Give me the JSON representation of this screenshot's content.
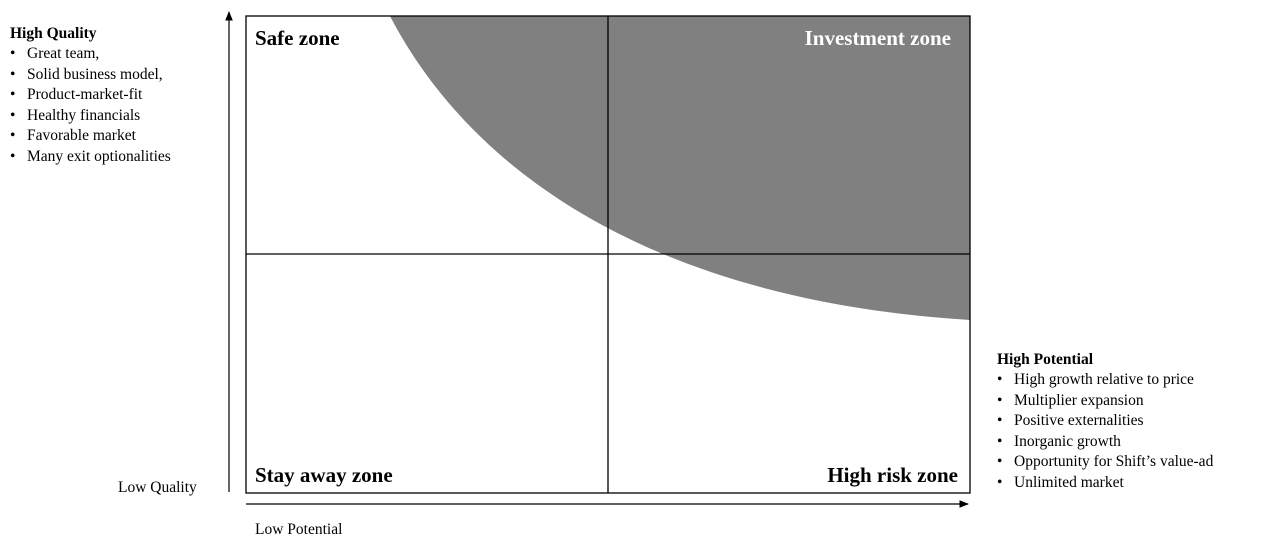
{
  "quality": {
    "title": "High Quality",
    "items": [
      "Great team,",
      "Solid business model,",
      "Product-market-fit",
      "Healthy financials",
      "Favorable market",
      "Many exit optionalities"
    ]
  },
  "potential": {
    "title": "High Potential",
    "items": [
      "High growth relative to price",
      "Multiplier expansion",
      "Positive externalities",
      "Inorganic growth",
      "Opportunity for Shift’s value-ad",
      "Unlimited market"
    ]
  },
  "axes": {
    "y_low_label": "Low Quality",
    "x_low_label": "Low Potential"
  },
  "zones": {
    "top_left": "Safe zone",
    "top_right": "Investment zone",
    "bottom_left": "Stay away zone",
    "bottom_right": "High risk zone"
  },
  "colors": {
    "investment_fill": "#808080",
    "lines": "#000000"
  }
}
